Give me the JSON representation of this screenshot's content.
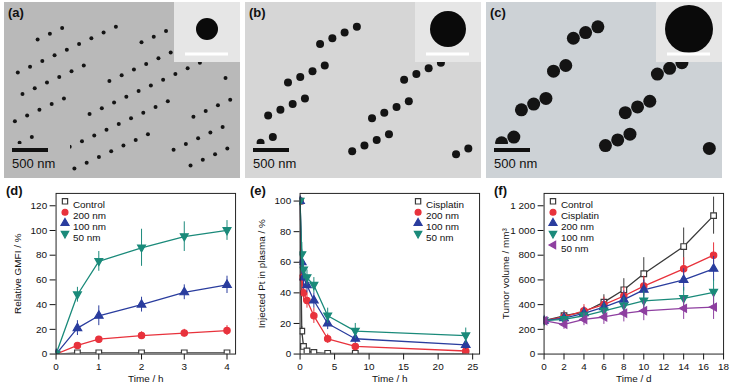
{
  "images": [
    {
      "label": "(a)",
      "scale_bar": "500 nm"
    },
    {
      "label": "(b)",
      "scale_bar": "500 nm"
    },
    {
      "label": "(c)",
      "scale_bar": "500 nm"
    }
  ],
  "chart_data": [
    {
      "type": "line",
      "title": "(d)",
      "x_label": "Time / h",
      "y_label": "Relative GMFI / %",
      "x": [
        0,
        0.5,
        1,
        2,
        3,
        4
      ],
      "series": [
        {
          "name": "Control",
          "color": "#3a3a3a",
          "marker": "open-square",
          "values": [
            0,
            1,
            1,
            1,
            1,
            1
          ],
          "errors": [
            0,
            0,
            0,
            0,
            0,
            0
          ]
        },
        {
          "name": "200 nm",
          "color": "#e8323c",
          "marker": "circle",
          "values": [
            0,
            7,
            12,
            15,
            17,
            19
          ],
          "errors": [
            0,
            2,
            2,
            3,
            3,
            4
          ]
        },
        {
          "name": "100 nm",
          "color": "#2a3d9e",
          "marker": "triangle",
          "values": [
            0,
            21,
            31,
            40,
            50,
            56
          ],
          "errors": [
            0,
            6,
            8,
            6,
            6,
            7
          ]
        },
        {
          "name": "50 nm",
          "color": "#1a8a7a",
          "marker": "triangle-down",
          "values": [
            0,
            48,
            75,
            86,
            95,
            100
          ],
          "errors": [
            0,
            6,
            8,
            15,
            12,
            8
          ]
        }
      ],
      "xlim": [
        0,
        4.2
      ],
      "xticks": [
        0,
        1,
        2,
        3,
        4
      ],
      "ylim": [
        0,
        130
      ],
      "yticks": [
        0,
        20,
        40,
        60,
        80,
        100,
        120
      ],
      "legend": "top-left"
    },
    {
      "type": "line",
      "title": "(e)",
      "x_label": "Time / h",
      "y_label": "Injected Pt in plasma / %",
      "x": [
        0,
        0.25,
        0.5,
        1,
        2,
        4,
        8,
        24
      ],
      "series": [
        {
          "name": "Cisplatin",
          "color": "#3a3a3a",
          "marker": "open-square",
          "values": [
            100,
            15,
            5,
            2,
            1,
            0.5,
            0.5,
            0.3
          ],
          "errors": [
            0,
            3,
            2,
            1,
            0.5,
            0.3,
            0.3,
            0.2
          ]
        },
        {
          "name": "200 nm",
          "color": "#e8323c",
          "marker": "circle",
          "values": [
            100,
            50,
            40,
            35,
            25,
            10,
            5,
            2
          ],
          "errors": [
            0,
            8,
            6,
            5,
            5,
            3,
            2,
            1
          ]
        },
        {
          "name": "100 nm",
          "color": "#2a3d9e",
          "marker": "triangle",
          "values": [
            100,
            60,
            50,
            45,
            35,
            20,
            10,
            6
          ],
          "errors": [
            0,
            8,
            6,
            5,
            5,
            4,
            3,
            3
          ]
        },
        {
          "name": "50 nm",
          "color": "#1a8a7a",
          "marker": "triangle-down",
          "values": [
            100,
            65,
            55,
            50,
            45,
            25,
            15,
            12
          ],
          "errors": [
            0,
            8,
            6,
            5,
            5,
            5,
            5,
            5
          ]
        }
      ],
      "xlim": [
        0,
        26
      ],
      "xticks": [
        0,
        5,
        10,
        15,
        20,
        25
      ],
      "ylim": [
        0,
        105
      ],
      "yticks": [
        0,
        20,
        40,
        60,
        80,
        100
      ],
      "legend": "top-right"
    },
    {
      "type": "line",
      "title": "(f)",
      "x_label": "Time / d",
      "y_label": "Tumor volume / mm³",
      "x": [
        0,
        2,
        4,
        6,
        8,
        10,
        14,
        17
      ],
      "series": [
        {
          "name": "Control",
          "color": "#3a3a3a",
          "marker": "open-square",
          "values": [
            270,
            310,
            340,
            420,
            520,
            650,
            870,
            1120
          ],
          "errors": [
            30,
            40,
            40,
            60,
            90,
            130,
            150,
            150
          ]
        },
        {
          "name": "Cisplatin",
          "color": "#e8323c",
          "marker": "circle",
          "values": [
            270,
            300,
            350,
            400,
            470,
            550,
            690,
            800
          ],
          "errors": [
            30,
            40,
            50,
            60,
            70,
            80,
            90,
            100
          ]
        },
        {
          "name": "200 nm",
          "color": "#2a3d9e",
          "marker": "triangle",
          "values": [
            270,
            290,
            330,
            380,
            440,
            520,
            600,
            690
          ],
          "errors": [
            30,
            40,
            50,
            60,
            70,
            80,
            90,
            100
          ]
        },
        {
          "name": "100 nm",
          "color": "#1a8a7a",
          "marker": "triangle-down",
          "values": [
            270,
            280,
            310,
            350,
            390,
            430,
            450,
            500
          ],
          "errors": [
            30,
            40,
            50,
            60,
            70,
            80,
            90,
            100
          ]
        },
        {
          "name": "50 nm",
          "color": "#8e3fa0",
          "marker": "triangle-left",
          "values": [
            270,
            240,
            280,
            300,
            330,
            350,
            370,
            380
          ],
          "errors": [
            30,
            40,
            50,
            60,
            70,
            80,
            90,
            100
          ]
        }
      ],
      "xlim": [
        0,
        18
      ],
      "xticks": [
        0,
        2,
        4,
        6,
        8,
        10,
        12,
        14,
        16,
        18
      ],
      "ylim": [
        0,
        1300
      ],
      "yticks": [
        0,
        200,
        400,
        600,
        800,
        {
          "value": 1000,
          "label": "1 000"
        },
        {
          "value": 1200,
          "label": "1 200"
        }
      ],
      "legend": "top-left"
    }
  ]
}
